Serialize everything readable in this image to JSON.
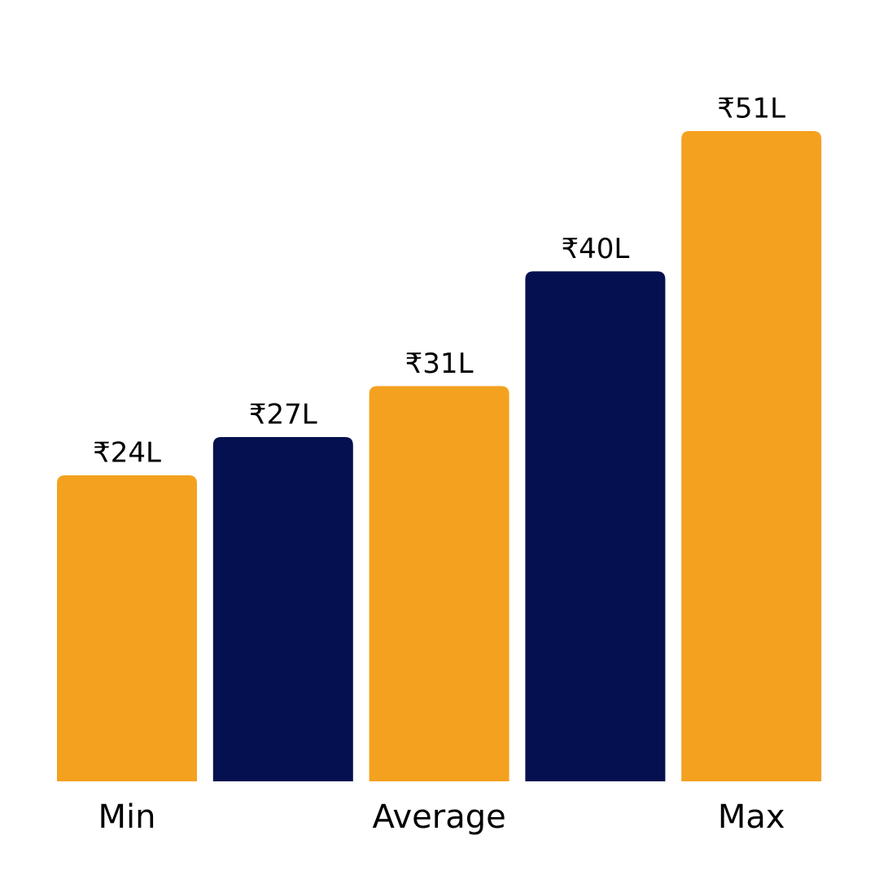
{
  "chart_data": {
    "type": "bar",
    "categories": [
      "Min",
      null,
      "Average",
      null,
      "Max"
    ],
    "values": [
      24,
      27,
      31,
      40,
      51
    ],
    "value_labels": [
      "₹24L",
      "₹27L",
      "₹31L",
      "₹40L",
      "₹51L"
    ],
    "colors": [
      "#f4a11f",
      "#04104f",
      "#f4a11f",
      "#04104f",
      "#f4a11f"
    ]
  }
}
